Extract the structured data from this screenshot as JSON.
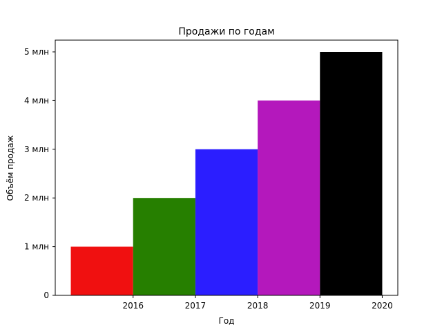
{
  "chart_data": {
    "type": "bar",
    "title": "Продажи по годам",
    "xlabel": "Год",
    "ylabel": "Объём продаж",
    "x_tick_labels": [
      "2016",
      "2017",
      "2018",
      "2019",
      "2020"
    ],
    "y_ticks": [
      {
        "value": 0,
        "label": "0"
      },
      {
        "value": 1000000,
        "label": "1 млн"
      },
      {
        "value": 2000000,
        "label": "2 млн"
      },
      {
        "value": 3000000,
        "label": "3 млн"
      },
      {
        "value": 4000000,
        "label": "4 млн"
      },
      {
        "value": 5000000,
        "label": "5 млн"
      }
    ],
    "bars": [
      {
        "year_start": 2015,
        "year_end": 2016,
        "value": 1000000,
        "color": "#f01010"
      },
      {
        "year_start": 2016,
        "year_end": 2017,
        "value": 2000000,
        "color": "#267f00"
      },
      {
        "year_start": 2017,
        "year_end": 2018,
        "value": 3000000,
        "color": "#2b1eff"
      },
      {
        "year_start": 2018,
        "year_end": 2019,
        "value": 4000000,
        "color": "#b418bc"
      },
      {
        "year_start": 2019,
        "year_end": 2020,
        "value": 5000000,
        "color": "#000000"
      }
    ],
    "xlim": [
      2014.75,
      2020.25
    ],
    "ylim": [
      0,
      5000000
    ],
    "grid": false,
    "legend": false
  }
}
